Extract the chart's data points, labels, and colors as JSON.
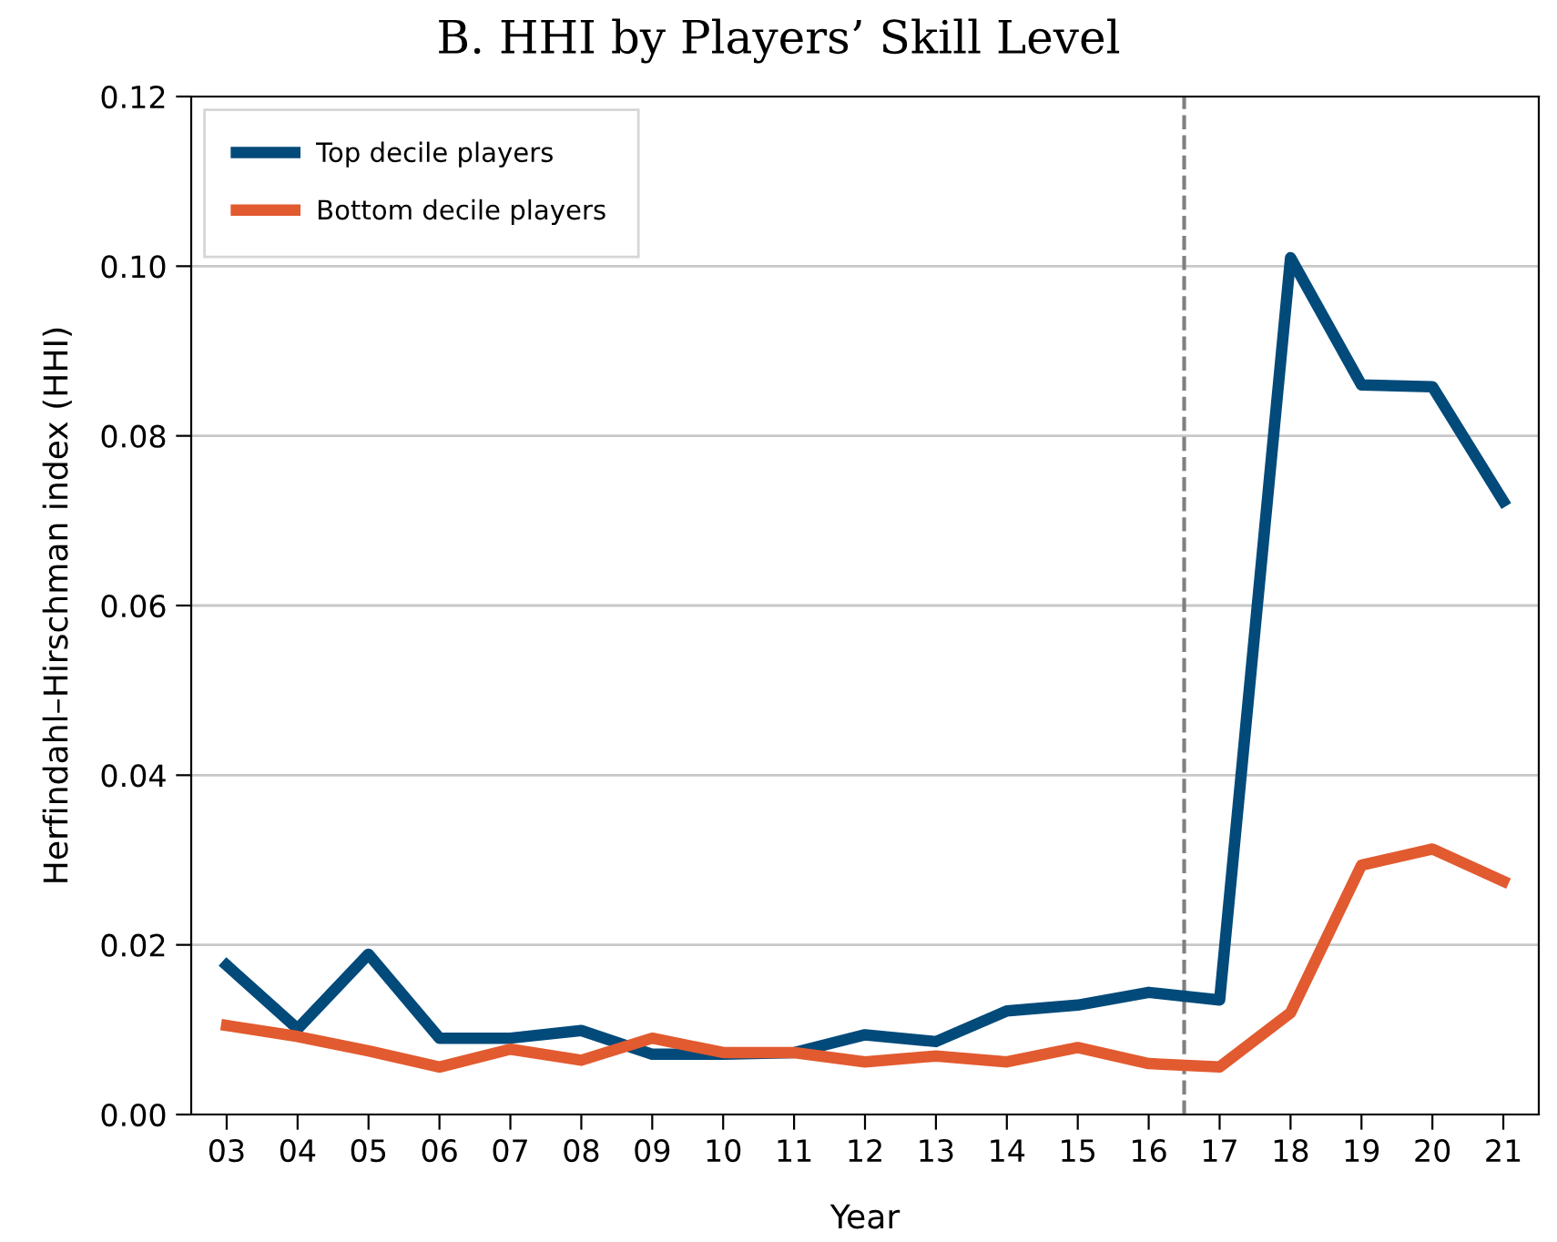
{
  "chart_data": {
    "type": "line",
    "title": "B. HHI by Players’ Skill Level",
    "xlabel": "Year",
    "ylabel": "Herfindahl–Hirschman index (HHI)",
    "x": [
      2003,
      2004,
      2005,
      2006,
      2007,
      2008,
      2009,
      2010,
      2011,
      2012,
      2013,
      2014,
      2015,
      2016,
      2017,
      2018,
      2019,
      2020,
      2021
    ],
    "series": [
      {
        "name": "Top decile players",
        "color": "#024a7a",
        "values": [
          0.0176,
          0.0101,
          0.0189,
          0.009,
          0.009,
          0.0099,
          0.0071,
          0.0071,
          0.0073,
          0.0094,
          0.0086,
          0.0122,
          0.0129,
          0.0144,
          0.0135,
          0.101,
          0.086,
          0.0858,
          0.0723
        ]
      },
      {
        "name": "Bottom decile players",
        "color": "#e25a2f",
        "values": [
          0.0105,
          0.0092,
          0.0075,
          0.0056,
          0.0077,
          0.0064,
          0.009,
          0.0073,
          0.0073,
          0.0062,
          0.0069,
          0.0062,
          0.0079,
          0.006,
          0.0056,
          0.012,
          0.0294,
          0.0313,
          0.0275
        ]
      }
    ],
    "xlim": [
      2002.5,
      2021.5
    ],
    "xticks": [
      {
        "value": 2003,
        "label": "03"
      },
      {
        "value": 2004,
        "label": "04"
      },
      {
        "value": 2005,
        "label": "05"
      },
      {
        "value": 2006,
        "label": "06"
      },
      {
        "value": 2007,
        "label": "07"
      },
      {
        "value": 2008,
        "label": "08"
      },
      {
        "value": 2009,
        "label": "09"
      },
      {
        "value": 2010,
        "label": "10"
      },
      {
        "value": 2011,
        "label": "11"
      },
      {
        "value": 2012,
        "label": "12"
      },
      {
        "value": 2013,
        "label": "13"
      },
      {
        "value": 2014,
        "label": "14"
      },
      {
        "value": 2015,
        "label": "15"
      },
      {
        "value": 2016,
        "label": "16"
      },
      {
        "value": 2017,
        "label": "17"
      },
      {
        "value": 2018,
        "label": "18"
      },
      {
        "value": 2019,
        "label": "19"
      },
      {
        "value": 2020,
        "label": "20"
      },
      {
        "value": 2021,
        "label": "21"
      }
    ],
    "ylim": [
      0,
      0.12
    ],
    "yticks": [
      {
        "value": 0,
        "label": "0.00"
      },
      {
        "value": 0.02,
        "label": "0.02"
      },
      {
        "value": 0.04,
        "label": "0.04"
      },
      {
        "value": 0.06,
        "label": "0.06"
      },
      {
        "value": 0.08,
        "label": "0.08"
      },
      {
        "value": 0.1,
        "label": "0.10"
      },
      {
        "value": 0.12,
        "label": "0.12"
      }
    ],
    "ref_lines": [
      {
        "axis": "x",
        "value": 2016.5,
        "color": "#808080",
        "line_style": "dashed"
      }
    ],
    "grid": "y",
    "legend": "top left",
    "line_style": "solid",
    "marker": "none"
  }
}
